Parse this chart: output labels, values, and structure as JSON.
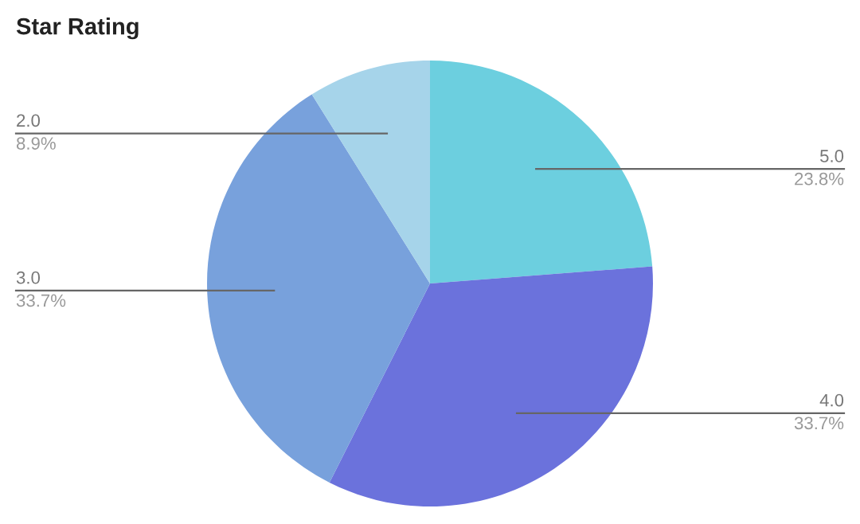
{
  "chart_data": {
    "type": "pie",
    "title": "Star Rating",
    "categories": [
      "5.0",
      "4.0",
      "3.0",
      "2.0"
    ],
    "values": [
      23.8,
      33.7,
      33.7,
      8.9
    ],
    "value_labels": [
      "23.8%",
      "33.7%",
      "33.7%",
      "8.9%"
    ],
    "colors": [
      "#6ccfdf",
      "#6b72dc",
      "#78a1dc",
      "#a6d4ea"
    ]
  }
}
